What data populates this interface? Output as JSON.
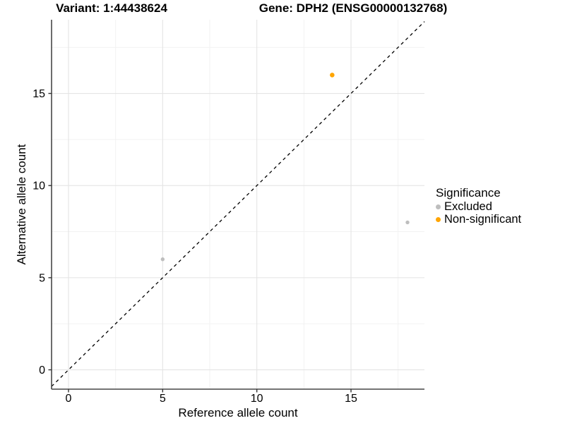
{
  "header": {
    "variant_title": "Variant: 1:44438624",
    "gene_title": "Gene: DPH2 (ENSG00000132768)"
  },
  "chart_data": {
    "type": "scatter",
    "title": "Variant: 1:44438624 — Gene: DPH2 (ENSG00000132768)",
    "xlabel": "Reference allele count",
    "ylabel": "Alternative allele count",
    "xlim": [
      -0.9,
      18.9
    ],
    "ylim": [
      -1.05,
      19.0
    ],
    "x_ticks": [
      0,
      5,
      10,
      15
    ],
    "y_ticks": [
      0,
      5,
      10,
      15
    ],
    "x_minor_ticks": [
      2.5,
      7.5,
      12.5,
      17.5
    ],
    "y_minor_ticks": [
      2.5,
      7.5,
      12.5,
      17.5
    ],
    "grid": "major+minor",
    "identity_line": {
      "type": "y=x",
      "style": "dashed",
      "color": "#000000"
    },
    "legend": {
      "title": "Significance",
      "position": "right"
    },
    "series": [
      {
        "name": "Excluded",
        "color": "#BEBEBE",
        "point_radius": 2.7,
        "points": [
          [
            5,
            6
          ],
          [
            18,
            8
          ]
        ]
      },
      {
        "name": "Non-significant",
        "color": "#FFA500",
        "point_radius": 3.3,
        "points": [
          [
            14,
            16
          ]
        ]
      }
    ],
    "colors": {
      "grid_major": "#E4E4E4",
      "grid_minor": "#F2F2F2",
      "axis_line": "#474747",
      "tick": "#333333",
      "text": "#000000"
    }
  }
}
